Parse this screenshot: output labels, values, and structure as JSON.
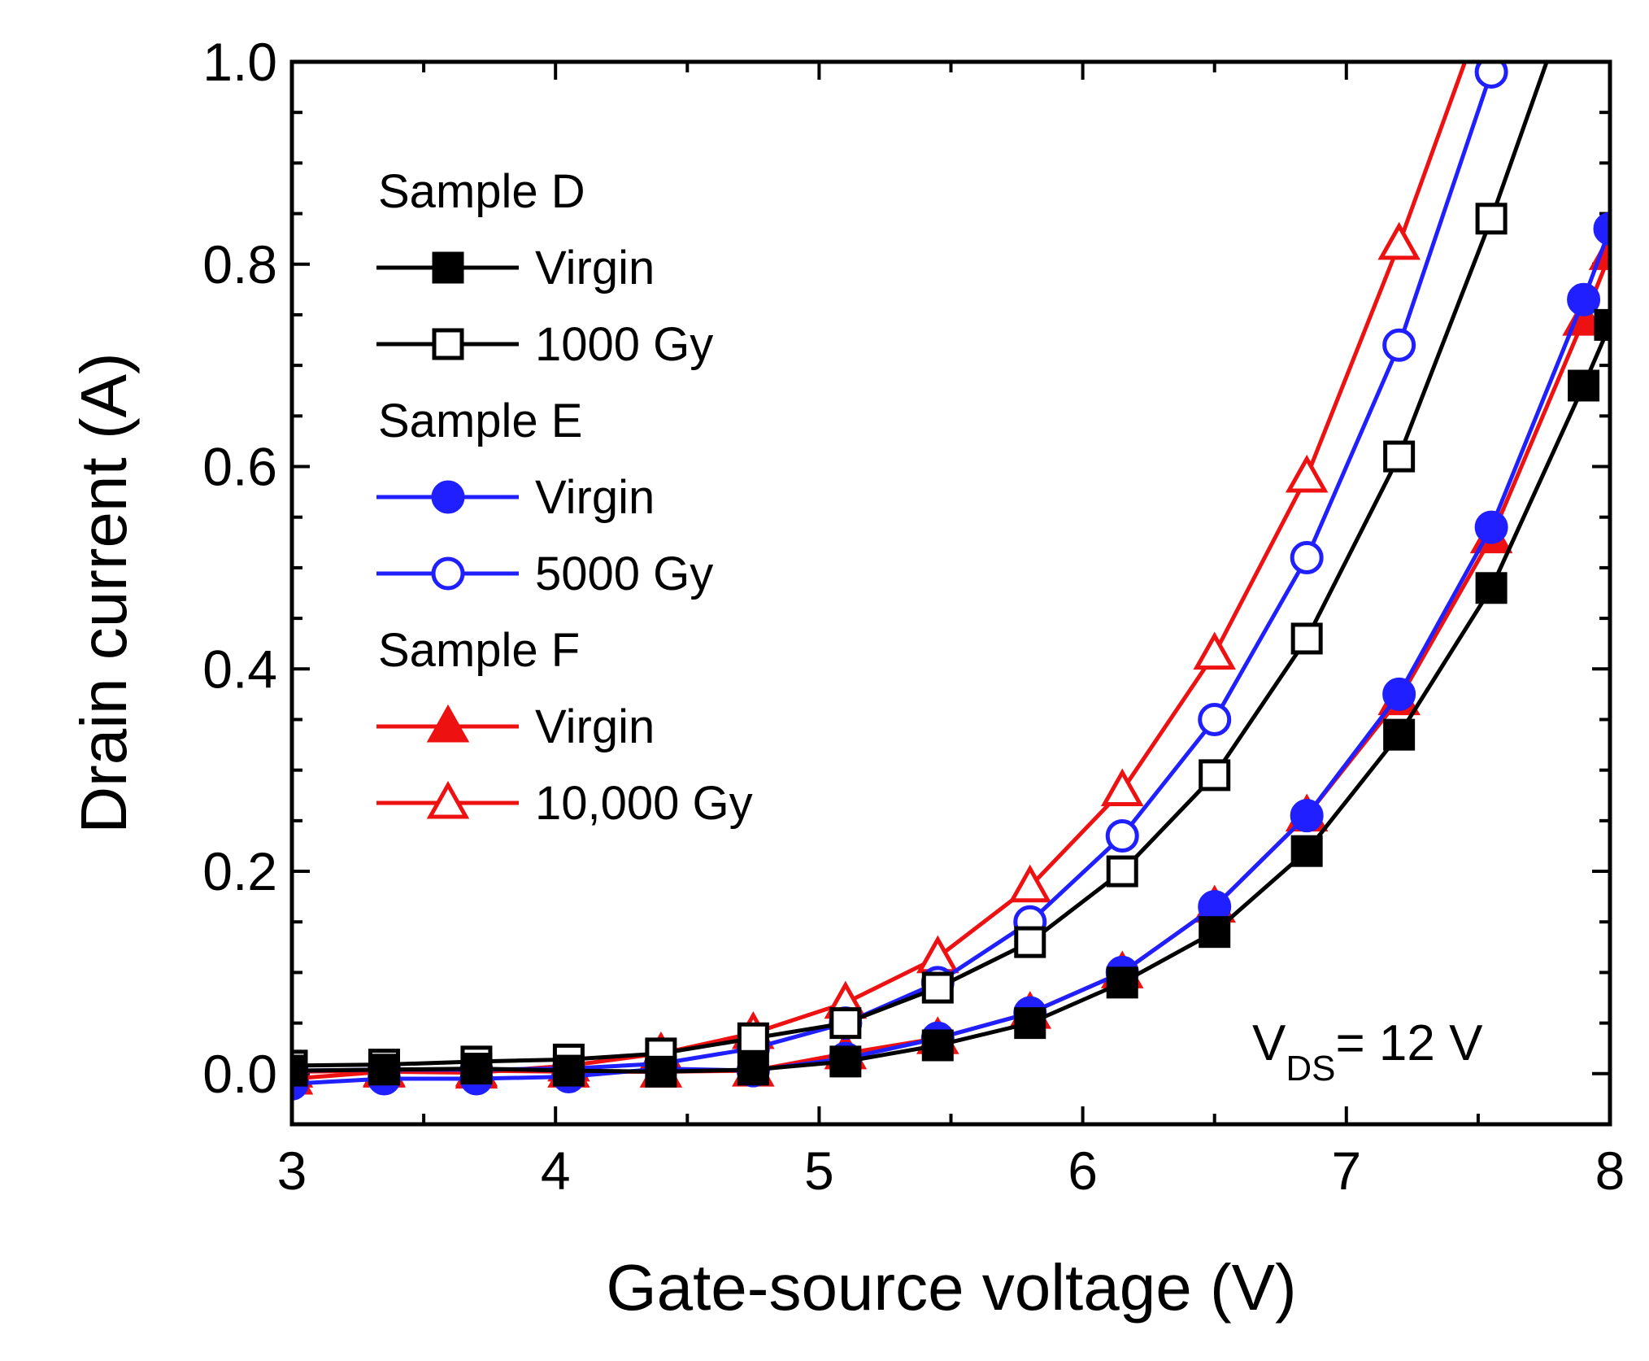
{
  "chart_data": {
    "type": "line",
    "title": "",
    "xlabel": "Gate-source voltage (V)",
    "ylabel": "Drain current (A)",
    "xlim": [
      3,
      8
    ],
    "ylim": [
      -0.05,
      1.0
    ],
    "x_ticks": [
      "3",
      "4",
      "5",
      "6",
      "7",
      "8"
    ],
    "y_ticks": [
      "0.0",
      "0.2",
      "0.4",
      "0.6",
      "0.8",
      "1.0"
    ],
    "annotation": {
      "main": "V",
      "sub": "DS",
      "rest": "= 12 V"
    },
    "legend_groups": [
      {
        "label": "Sample D",
        "entries": [
          {
            "series": "D-virgin",
            "label": "Virgin"
          },
          {
            "series": "D-1000",
            "label": "1000 Gy"
          }
        ]
      },
      {
        "label": "Sample E",
        "entries": [
          {
            "series": "E-virgin",
            "label": "Virgin"
          },
          {
            "series": "E-5000",
            "label": " 5000 Gy"
          }
        ]
      },
      {
        "label": "Sample F",
        "entries": [
          {
            "series": "F-virgin",
            "label": "Virgin"
          },
          {
            "series": "F-10000",
            "label": "10,000 Gy"
          }
        ]
      }
    ],
    "series": [
      {
        "id": "D-virgin",
        "name": "Sample D Virgin",
        "color": "#000000",
        "marker": "square",
        "filled": true,
        "x": [
          3.0,
          3.35,
          3.7,
          4.05,
          4.4,
          4.75,
          5.1,
          5.45,
          5.8,
          6.15,
          6.5,
          6.85,
          7.2,
          7.55,
          7.9,
          8.0
        ],
        "y": [
          0.003,
          0.004,
          0.005,
          0.003,
          0.002,
          0.004,
          0.012,
          0.028,
          0.05,
          0.09,
          0.14,
          0.22,
          0.335,
          0.48,
          0.68,
          0.74
        ]
      },
      {
        "id": "D-1000",
        "name": "Sample D 1000 Gy",
        "color": "#000000",
        "marker": "square",
        "filled": false,
        "x": [
          3.0,
          3.35,
          3.7,
          4.05,
          4.4,
          4.75,
          5.1,
          5.45,
          5.8,
          6.15,
          6.5,
          6.85,
          7.2,
          7.55,
          7.76
        ],
        "y": [
          0.008,
          0.009,
          0.012,
          0.014,
          0.02,
          0.035,
          0.05,
          0.085,
          0.13,
          0.2,
          0.295,
          0.43,
          0.61,
          0.845,
          1.0
        ]
      },
      {
        "id": "E-virgin",
        "name": "Sample E Virgin",
        "color": "#1f1fff",
        "marker": "circle",
        "filled": true,
        "x": [
          3.0,
          3.35,
          3.7,
          4.05,
          4.4,
          4.75,
          5.1,
          5.45,
          5.8,
          6.15,
          6.5,
          6.85,
          7.2,
          7.55,
          7.9,
          8.0
        ],
        "y": [
          -0.01,
          -0.005,
          -0.005,
          -0.003,
          0.005,
          0.003,
          0.015,
          0.035,
          0.06,
          0.1,
          0.165,
          0.255,
          0.375,
          0.54,
          0.765,
          0.835
        ]
      },
      {
        "id": "E-5000",
        "name": "Sample E 5000 Gy",
        "color": "#1f1fff",
        "marker": "circle",
        "filled": false,
        "x": [
          3.0,
          3.35,
          3.7,
          4.05,
          4.4,
          4.75,
          5.1,
          5.45,
          5.8,
          6.15,
          6.5,
          6.85,
          7.2,
          7.55,
          7.58
        ],
        "y": [
          0.003,
          0.004,
          0.004,
          0.005,
          0.01,
          0.025,
          0.05,
          0.09,
          0.15,
          0.235,
          0.35,
          0.51,
          0.72,
          0.99,
          1.0
        ]
      },
      {
        "id": "F-virgin",
        "name": "Sample F Virgin",
        "color": "#ee1111",
        "marker": "triangle",
        "filled": true,
        "x": [
          3.0,
          3.35,
          3.7,
          4.05,
          4.4,
          4.75,
          5.1,
          5.45,
          5.8,
          6.15,
          6.5,
          6.85,
          7.2,
          7.55,
          7.9,
          8.0
        ],
        "y": [
          0.002,
          0.003,
          0.003,
          0.002,
          0.002,
          0.003,
          0.02,
          0.035,
          0.06,
          0.1,
          0.165,
          0.255,
          0.37,
          0.53,
          0.745,
          0.81
        ]
      },
      {
        "id": "F-10000",
        "name": "Sample F 10,000 Gy",
        "color": "#ee1111",
        "marker": "triangle",
        "filled": false,
        "x": [
          3.0,
          3.35,
          3.7,
          4.05,
          4.4,
          4.75,
          5.1,
          5.45,
          5.8,
          6.15,
          6.5,
          6.85,
          7.2,
          7.45
        ],
        "y": [
          -0.005,
          0.002,
          0.001,
          0.008,
          0.02,
          0.04,
          0.07,
          0.115,
          0.185,
          0.28,
          0.415,
          0.59,
          0.82,
          1.0
        ]
      }
    ]
  }
}
